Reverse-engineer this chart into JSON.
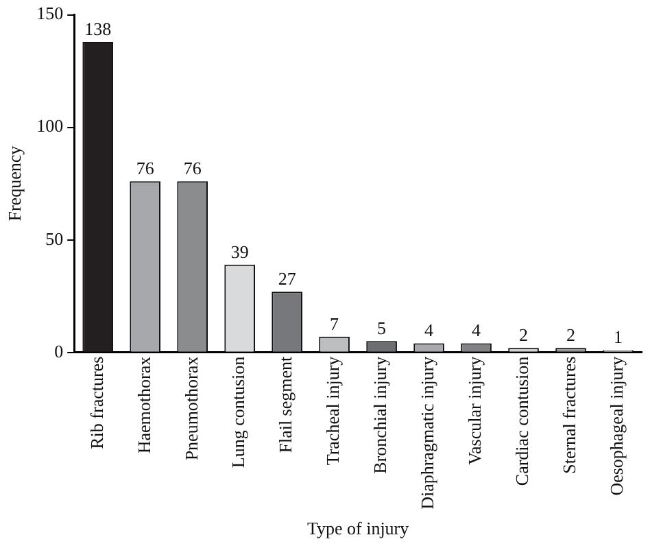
{
  "chart_data": {
    "type": "bar",
    "xlabel": "Type of injury",
    "ylabel": "Frequency",
    "categories": [
      "Rib fractures",
      "Haemothorax",
      "Pneumothorax",
      "Lung contusion",
      "Flail segment",
      "Tracheal injury",
      "Bronchial injury",
      "Diaphragmatic injury",
      "Vascular injury",
      "Cardiac contusion",
      "Sternal fractures",
      "Oesophageal injury"
    ],
    "values": [
      138,
      76,
      76,
      39,
      27,
      7,
      5,
      4,
      4,
      2,
      2,
      1
    ],
    "colors": [
      "#231f20",
      "#a6a8ab",
      "#8a8c8e",
      "#d9dadb",
      "#77787b",
      "#bcbec0",
      "#6d6e71",
      "#a7a9ac",
      "#808285",
      "#d1d3d4",
      "#939598",
      "#e6e7e8"
    ],
    "ylim": [
      0,
      150
    ],
    "yticks": [
      0,
      50,
      100,
      150
    ],
    "data_labels": true,
    "grid": false,
    "legend": false
  }
}
